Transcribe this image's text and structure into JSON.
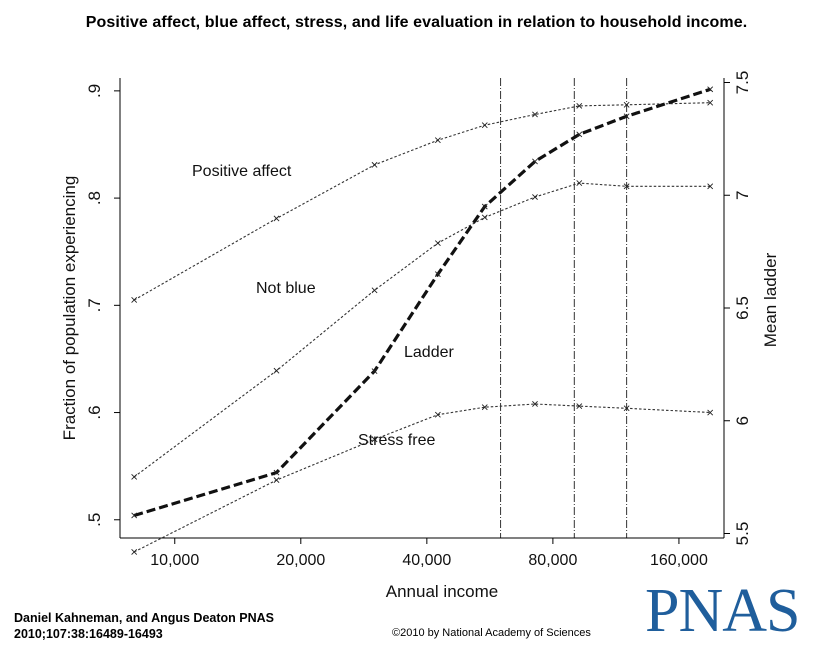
{
  "figure_title": "Positive affect, blue affect, stress, and life evaluation in relation to household income.",
  "credit": {
    "line1": "Daniel Kahneman, and Angus Deaton PNAS",
    "line2": "2010;107:38:16489-16493"
  },
  "copyright": "©2010 by National Academy of Sciences",
  "logo_text": "PNAS",
  "colors": {
    "logo": "#1f5e9c",
    "lines": "#333333",
    "ladder": "#111111"
  },
  "chart_data": {
    "type": "line",
    "x_scale": "log",
    "xlabel": "Annual income",
    "ylabel_left": "Fraction of population experiencing",
    "ylabel_right": "Mean ladder",
    "x_ticks": [
      10000,
      20000,
      40000,
      80000,
      160000
    ],
    "x_tick_labels": [
      "10,000",
      "20,000",
      "40,000",
      "80,000",
      "160,000"
    ],
    "y_left_ticks": [
      0.5,
      0.6,
      0.7,
      0.8,
      0.9
    ],
    "y_left_tick_labels": [
      ".5",
      ".6",
      ".7",
      ".8",
      ".9"
    ],
    "y_left_lim": [
      0.483,
      0.912
    ],
    "y_right_ticks": [
      5.5,
      6,
      6.5,
      7,
      7.5
    ],
    "y_right_tick_labels": [
      "5.5",
      "6",
      "6.5",
      "7",
      "7.5"
    ],
    "y_right_lim": [
      5.48,
      7.52
    ],
    "vertical_reference_lines": [
      60000,
      90000,
      120000
    ],
    "x": [
      8000,
      17500,
      30000,
      42500,
      55000,
      72500,
      92500,
      120000,
      190000
    ],
    "series": [
      {
        "name": "Positive affect",
        "axis": "left",
        "style": "dotted-x",
        "values": [
          0.705,
          0.781,
          0.831,
          0.854,
          0.868,
          0.878,
          0.886,
          0.887,
          0.889
        ]
      },
      {
        "name": "Not blue",
        "axis": "left",
        "style": "dotted-x",
        "values": [
          0.54,
          0.639,
          0.714,
          0.758,
          0.782,
          0.801,
          0.814,
          0.811,
          0.811
        ]
      },
      {
        "name": "Stress free",
        "axis": "left",
        "style": "dotted-x",
        "values": [
          0.47,
          0.537,
          0.575,
          0.598,
          0.605,
          0.608,
          0.606,
          0.604,
          0.6
        ]
      },
      {
        "name": "Ladder",
        "axis": "right",
        "style": "bold-dashed",
        "values": [
          5.58,
          5.77,
          6.22,
          6.65,
          6.95,
          7.15,
          7.27,
          7.35,
          7.47
        ]
      }
    ],
    "annotations": [
      "Positive affect",
      "Not blue",
      "Ladder",
      "Stress free"
    ]
  }
}
